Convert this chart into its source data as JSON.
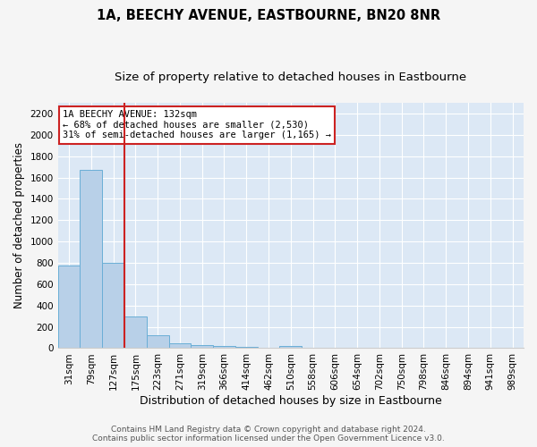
{
  "title": "1A, BEECHY AVENUE, EASTBOURNE, BN20 8NR",
  "subtitle": "Size of property relative to detached houses in Eastbourne",
  "xlabel": "Distribution of detached houses by size in Eastbourne",
  "ylabel": "Number of detached properties",
  "categories": [
    "31sqm",
    "79sqm",
    "127sqm",
    "175sqm",
    "223sqm",
    "271sqm",
    "319sqm",
    "366sqm",
    "414sqm",
    "462sqm",
    "510sqm",
    "558sqm",
    "606sqm",
    "654sqm",
    "702sqm",
    "750sqm",
    "798sqm",
    "846sqm",
    "894sqm",
    "941sqm",
    "989sqm"
  ],
  "values": [
    775,
    1675,
    800,
    300,
    120,
    42,
    25,
    18,
    13,
    0,
    20,
    0,
    0,
    0,
    0,
    0,
    0,
    0,
    0,
    0,
    0
  ],
  "bar_color": "#b8d0e8",
  "bar_edge_color": "#6aaed6",
  "ylim": [
    0,
    2300
  ],
  "yticks": [
    0,
    200,
    400,
    600,
    800,
    1000,
    1200,
    1400,
    1600,
    1800,
    2000,
    2200
  ],
  "property_bin_index": 2,
  "vline_color": "#cc2222",
  "annotation_title": "1A BEECHY AVENUE: 132sqm",
  "annotation_line1": "← 68% of detached houses are smaller (2,530)",
  "annotation_line2": "31% of semi-detached houses are larger (1,165) →",
  "annotation_box_color": "#ffffff",
  "annotation_box_edge_color": "#cc2222",
  "background_color": "#dce8f5",
  "fig_background_color": "#f5f5f5",
  "footer_line1": "Contains HM Land Registry data © Crown copyright and database right 2024.",
  "footer_line2": "Contains public sector information licensed under the Open Government Licence v3.0.",
  "title_fontsize": 10.5,
  "subtitle_fontsize": 9.5,
  "xlabel_fontsize": 9,
  "ylabel_fontsize": 8.5,
  "tick_fontsize": 7.5,
  "annotation_fontsize": 7.5,
  "footer_fontsize": 6.5
}
